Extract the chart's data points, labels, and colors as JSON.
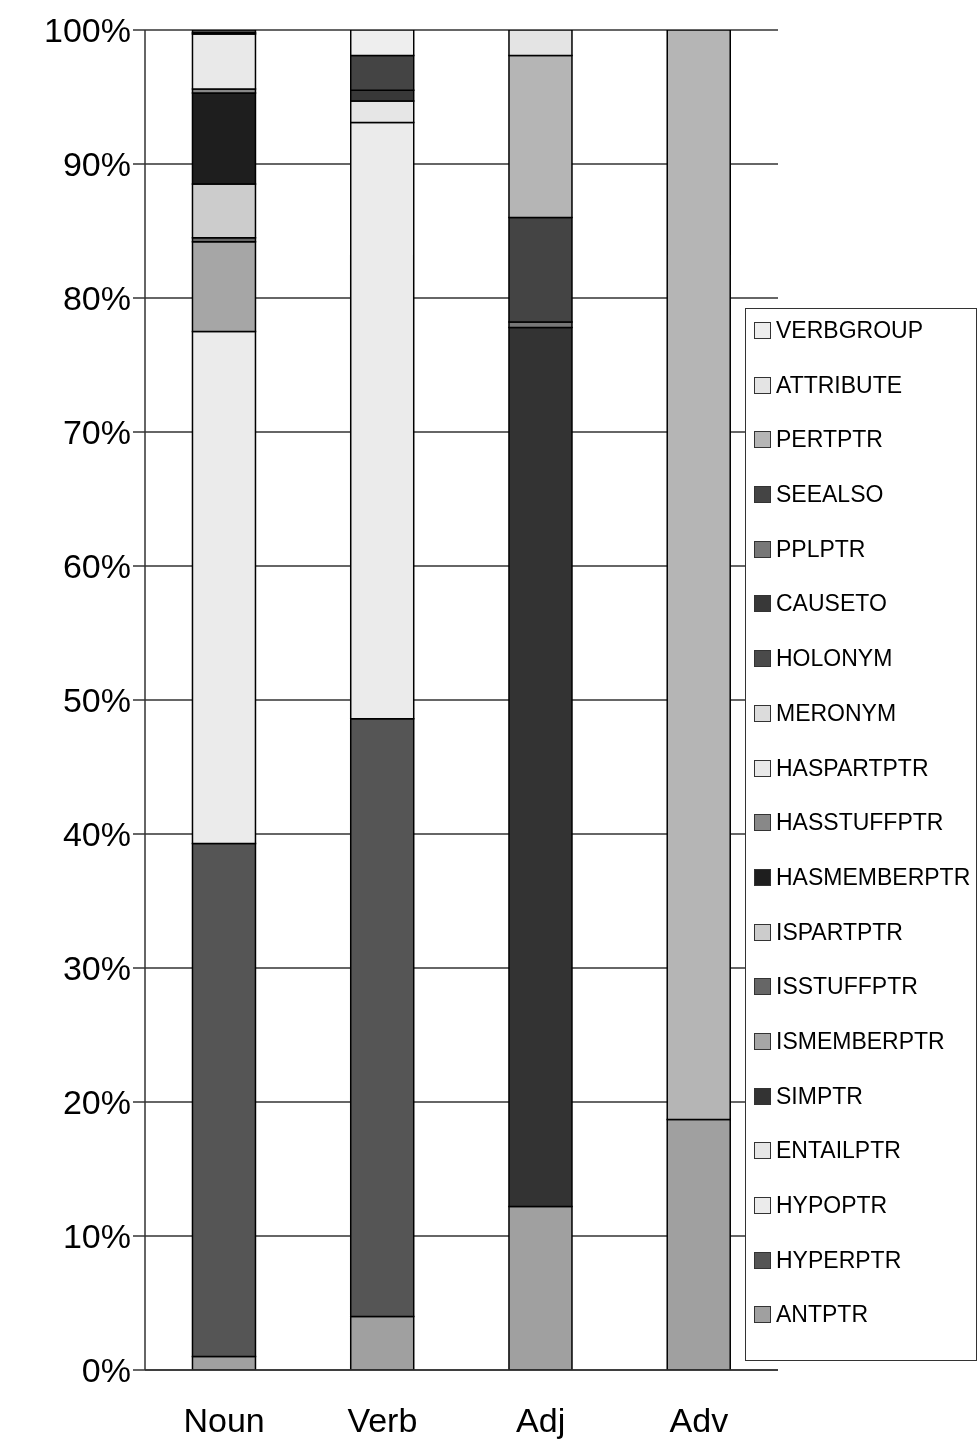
{
  "chart_data": {
    "type": "bar",
    "stacked": true,
    "categories": [
      "Noun",
      "Verb",
      "Adj",
      "Adv"
    ],
    "series": [
      {
        "name": "ANTPTR",
        "color": "#a0a0a0",
        "values": [
          1.0,
          4.0,
          12.2,
          18.7
        ]
      },
      {
        "name": "HYPERPTR",
        "color": "#555555",
        "values": [
          38.3,
          44.6,
          0,
          0
        ]
      },
      {
        "name": "HYPOPTR",
        "color": "#ebebeb",
        "values": [
          38.2,
          44.5,
          0,
          0
        ]
      },
      {
        "name": "ENTAILPTR",
        "color": "#e6e6e6",
        "values": [
          0,
          1.6,
          0,
          0
        ]
      },
      {
        "name": "SIMPTR",
        "color": "#333333",
        "values": [
          0,
          0,
          65.6,
          0
        ]
      },
      {
        "name": "ISMEMBERPTR",
        "color": "#a6a6a6",
        "values": [
          6.7,
          0,
          0,
          0
        ]
      },
      {
        "name": "ISSTUFFPTR",
        "color": "#666666",
        "values": [
          0.3,
          0,
          0,
          0
        ]
      },
      {
        "name": "ISPARTPTR",
        "color": "#cccccc",
        "values": [
          4.0,
          0,
          0,
          0
        ]
      },
      {
        "name": "HASMEMBERPTR",
        "color": "#1e1e1e",
        "values": [
          6.8,
          0,
          0,
          0
        ]
      },
      {
        "name": "HASSTUFFPTR",
        "color": "#888888",
        "values": [
          0.3,
          0,
          0,
          0
        ]
      },
      {
        "name": "HASPARTPTR",
        "color": "#e9e9e9",
        "values": [
          4.1,
          0,
          0,
          0
        ]
      },
      {
        "name": "MERONYM",
        "color": "#dcdcdc",
        "values": [
          0.1,
          0,
          0,
          0
        ]
      },
      {
        "name": "HOLONYM",
        "color": "#4a4a4a",
        "values": [
          0.2,
          0,
          0,
          0
        ]
      },
      {
        "name": "CAUSETO",
        "color": "#383838",
        "values": [
          0,
          0.8,
          0,
          0
        ]
      },
      {
        "name": "PPLPTR",
        "color": "#777777",
        "values": [
          0,
          0,
          0.4,
          0
        ]
      },
      {
        "name": "SEEALSO",
        "color": "#444444",
        "values": [
          0,
          2.6,
          7.8,
          0
        ]
      },
      {
        "name": "PERTPTR",
        "color": "#b5b5b5",
        "values": [
          0,
          0,
          12.1,
          81.3
        ]
      },
      {
        "name": "ATTRIBUTE",
        "color": "#e4e4e4",
        "values": [
          0,
          0,
          1.9,
          0
        ]
      },
      {
        "name": "VERBGROUP",
        "color": "#eeeeee",
        "values": [
          0,
          1.9,
          0,
          0
        ]
      }
    ],
    "ylim": [
      0,
      100
    ],
    "yticks": [
      {
        "value": 0,
        "label": "0%"
      },
      {
        "value": 10,
        "label": "10%"
      },
      {
        "value": 20,
        "label": "20%"
      },
      {
        "value": 30,
        "label": "30%"
      },
      {
        "value": 40,
        "label": "40%"
      },
      {
        "value": 50,
        "label": "50%"
      },
      {
        "value": 60,
        "label": "60%"
      },
      {
        "value": 70,
        "label": "70%"
      },
      {
        "value": 80,
        "label": "80%"
      },
      {
        "value": 90,
        "label": "90%"
      },
      {
        "value": 100,
        "label": "100%"
      }
    ],
    "grid": "y",
    "legend": "right"
  }
}
